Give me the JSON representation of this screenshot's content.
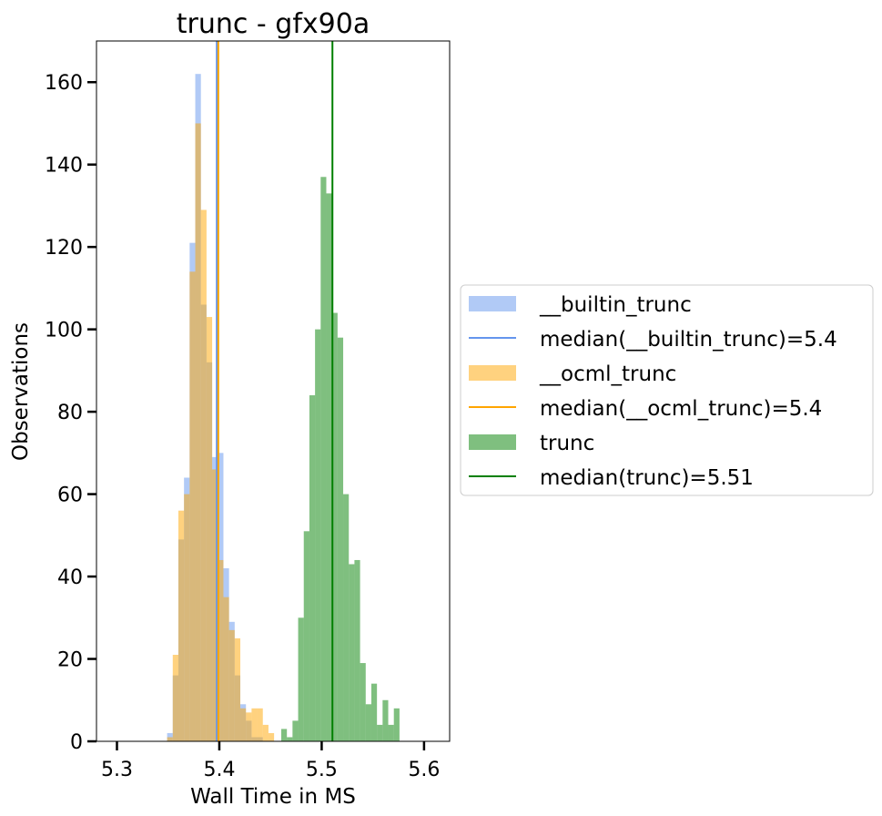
{
  "chart_data": {
    "type": "bar",
    "title": "trunc - gfx90a",
    "xlabel": "Wall Time in MS",
    "ylabel": "Observations",
    "xlim": [
      5.28,
      5.625
    ],
    "ylim": [
      0,
      170
    ],
    "xticks": [
      5.3,
      5.4,
      5.5,
      5.6
    ],
    "xtick_labels": [
      "5.3",
      "5.4",
      "5.5",
      "5.6"
    ],
    "yticks": [
      0,
      20,
      40,
      60,
      80,
      100,
      120,
      140,
      160
    ],
    "ytick_labels": [
      "0",
      "20",
      "40",
      "60",
      "80",
      "100",
      "120",
      "140",
      "160"
    ],
    "grid": false,
    "legend_placement": "outside-right",
    "bin_width": 0.0055,
    "series": [
      {
        "name": "__builtin_trunc",
        "color": "#6495ed",
        "opacity": 0.5,
        "bin_start": 5.349,
        "counts": [
          2,
          16,
          49,
          64,
          121,
          162,
          106,
          92,
          69,
          70,
          42,
          29,
          16,
          9,
          5,
          1,
          1
        ]
      },
      {
        "name": "__ocml_trunc",
        "color": "#ffa500",
        "opacity": 0.5,
        "bin_start": 5.349,
        "counts": [
          1,
          21,
          56,
          60,
          114,
          150,
          129,
          103,
          66,
          44,
          35,
          27,
          25,
          8,
          7,
          8,
          8,
          4,
          2
        ]
      },
      {
        "name": "trunc",
        "color": "#008000",
        "opacity": 0.5,
        "bin_start": 5.4605,
        "counts": [
          3,
          1,
          5,
          30,
          51,
          84,
          100,
          137,
          133,
          104,
          98,
          60,
          43,
          44,
          19,
          9,
          14,
          4,
          10,
          4,
          8
        ]
      }
    ],
    "medians": [
      {
        "name": "median(__builtin_trunc)=5.4",
        "value": 5.3975,
        "color": "#6495ed"
      },
      {
        "name": "median(__ocml_trunc)=5.4",
        "value": 5.399,
        "color": "#ffa500"
      },
      {
        "name": "median(trunc)=5.51",
        "value": 5.5105,
        "color": "#008000"
      }
    ],
    "legend": [
      {
        "label": "__builtin_trunc",
        "kind": "patch",
        "color": "#6495ed",
        "opacity": 0.5
      },
      {
        "label": "median(__builtin_trunc)=5.4",
        "kind": "line",
        "color": "#6495ed"
      },
      {
        "label": "__ocml_trunc",
        "kind": "patch",
        "color": "#ffa500",
        "opacity": 0.5
      },
      {
        "label": "median(__ocml_trunc)=5.4",
        "kind": "line",
        "color": "#ffa500"
      },
      {
        "label": "trunc",
        "kind": "patch",
        "color": "#008000",
        "opacity": 0.5
      },
      {
        "label": "median(trunc)=5.51",
        "kind": "line",
        "color": "#008000"
      }
    ]
  }
}
